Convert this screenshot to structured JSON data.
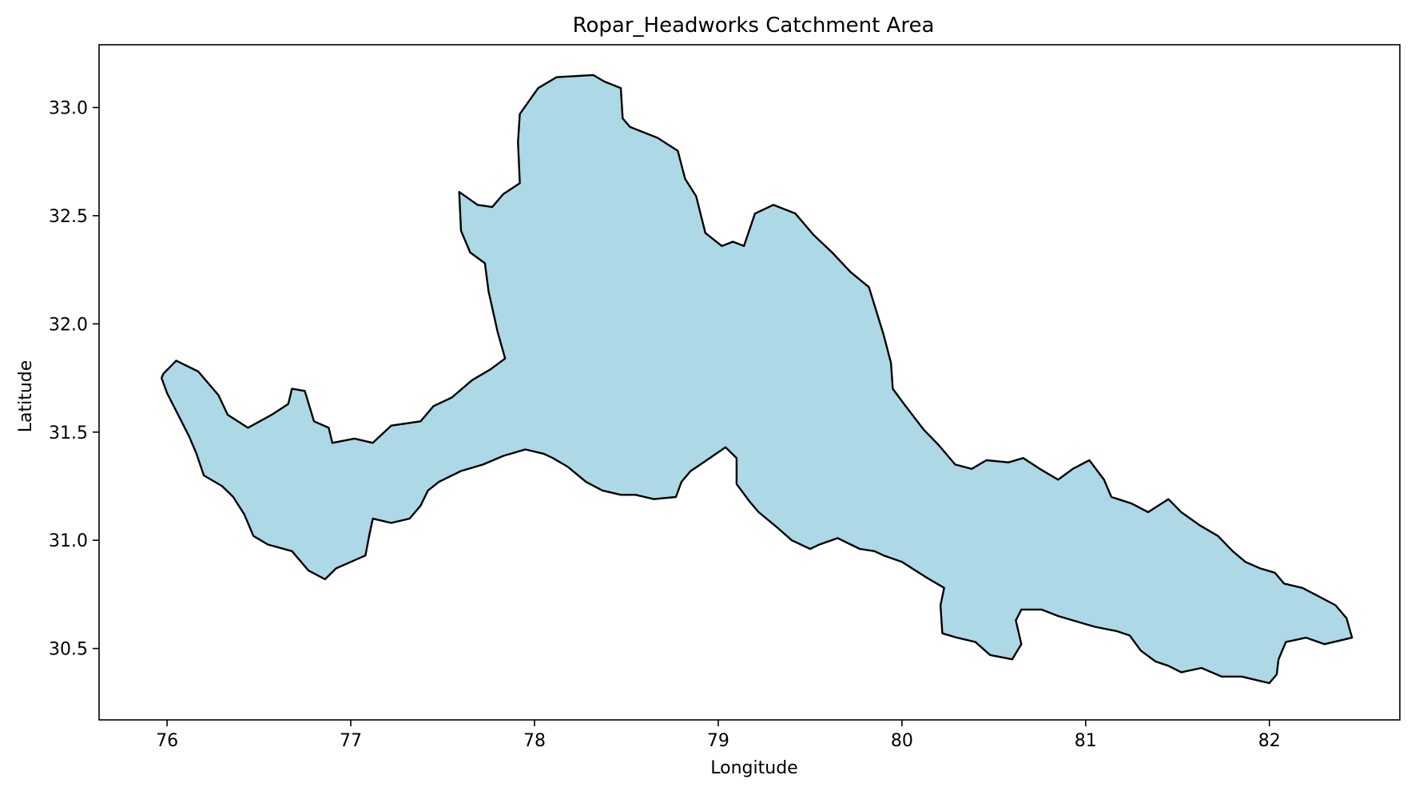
{
  "chart_data": {
    "type": "map",
    "title": "Ropar_Headworks Catchment Area",
    "xlabel": "Longitude",
    "ylabel": "Latitude",
    "xlim": [
      75.63,
      82.71
    ],
    "ylim": [
      30.17,
      33.29
    ],
    "xticks": [
      76,
      77,
      78,
      79,
      80,
      81,
      82
    ],
    "xtick_labels": [
      "76",
      "77",
      "78",
      "79",
      "80",
      "81",
      "82"
    ],
    "yticks": [
      30.5,
      31.0,
      31.5,
      32.0,
      32.5,
      33.0
    ],
    "ytick_labels": [
      "30.5",
      "31.0",
      "31.5",
      "32.0",
      "32.5",
      "33.0"
    ],
    "grid": false,
    "fill_color": "#add8e6",
    "edge_color": "#000000",
    "boundary": [
      [
        75.98,
        31.77
      ],
      [
        76.05,
        31.83
      ],
      [
        76.17,
        31.78
      ],
      [
        76.28,
        31.67
      ],
      [
        76.33,
        31.58
      ],
      [
        76.44,
        31.52
      ],
      [
        76.57,
        31.58
      ],
      [
        76.66,
        31.63
      ],
      [
        76.68,
        31.7
      ],
      [
        76.75,
        31.69
      ],
      [
        76.8,
        31.55
      ],
      [
        76.88,
        31.52
      ],
      [
        76.9,
        31.45
      ],
      [
        77.02,
        31.47
      ],
      [
        77.12,
        31.45
      ],
      [
        77.22,
        31.53
      ],
      [
        77.38,
        31.55
      ],
      [
        77.45,
        31.62
      ],
      [
        77.55,
        31.66
      ],
      [
        77.66,
        31.74
      ],
      [
        77.76,
        31.79
      ],
      [
        77.84,
        31.84
      ],
      [
        77.8,
        31.96
      ],
      [
        77.75,
        32.15
      ],
      [
        77.73,
        32.28
      ],
      [
        77.65,
        32.33
      ],
      [
        77.6,
        32.43
      ],
      [
        77.59,
        32.61
      ],
      [
        77.69,
        32.55
      ],
      [
        77.77,
        32.54
      ],
      [
        77.83,
        32.6
      ],
      [
        77.92,
        32.65
      ],
      [
        77.91,
        32.84
      ],
      [
        77.92,
        32.97
      ],
      [
        78.02,
        33.09
      ],
      [
        78.12,
        33.14
      ],
      [
        78.32,
        33.15
      ],
      [
        78.38,
        33.12
      ],
      [
        78.47,
        33.09
      ],
      [
        78.48,
        32.95
      ],
      [
        78.52,
        32.91
      ],
      [
        78.67,
        32.86
      ],
      [
        78.78,
        32.8
      ],
      [
        78.82,
        32.67
      ],
      [
        78.88,
        32.59
      ],
      [
        78.93,
        32.42
      ],
      [
        79.02,
        32.36
      ],
      [
        79.08,
        32.38
      ],
      [
        79.14,
        32.36
      ],
      [
        79.2,
        32.51
      ],
      [
        79.3,
        32.55
      ],
      [
        79.42,
        32.51
      ],
      [
        79.52,
        32.41
      ],
      [
        79.62,
        32.33
      ],
      [
        79.72,
        32.24
      ],
      [
        79.82,
        32.17
      ],
      [
        79.86,
        32.06
      ],
      [
        79.9,
        31.95
      ],
      [
        79.94,
        31.82
      ],
      [
        79.95,
        31.7
      ],
      [
        80.02,
        31.62
      ],
      [
        80.12,
        31.51
      ],
      [
        80.2,
        31.44
      ],
      [
        80.29,
        31.35
      ],
      [
        80.38,
        31.33
      ],
      [
        80.46,
        31.37
      ],
      [
        80.58,
        31.36
      ],
      [
        80.66,
        31.38
      ],
      [
        80.75,
        31.33
      ],
      [
        80.85,
        31.28
      ],
      [
        80.93,
        31.33
      ],
      [
        81.02,
        31.37
      ],
      [
        81.1,
        31.28
      ],
      [
        81.14,
        31.2
      ],
      [
        81.25,
        31.17
      ],
      [
        81.34,
        31.13
      ],
      [
        81.45,
        31.19
      ],
      [
        81.52,
        31.13
      ],
      [
        81.62,
        31.07
      ],
      [
        81.72,
        31.02
      ],
      [
        81.8,
        30.95
      ],
      [
        81.87,
        30.9
      ],
      [
        81.95,
        30.87
      ],
      [
        82.03,
        30.85
      ],
      [
        82.08,
        30.8
      ],
      [
        82.18,
        30.78
      ],
      [
        82.27,
        30.74
      ],
      [
        82.36,
        30.7
      ],
      [
        82.42,
        30.64
      ],
      [
        82.45,
        30.55
      ],
      [
        82.4,
        30.54
      ],
      [
        82.3,
        30.52
      ],
      [
        82.2,
        30.55
      ],
      [
        82.09,
        30.53
      ],
      [
        82.05,
        30.45
      ],
      [
        82.04,
        30.38
      ],
      [
        82.0,
        30.34
      ],
      [
        81.95,
        30.35
      ],
      [
        81.85,
        30.37
      ],
      [
        81.74,
        30.37
      ],
      [
        81.63,
        30.41
      ],
      [
        81.52,
        30.39
      ],
      [
        81.45,
        30.42
      ],
      [
        81.38,
        30.44
      ],
      [
        81.3,
        30.49
      ],
      [
        81.24,
        30.56
      ],
      [
        81.17,
        30.58
      ],
      [
        81.05,
        30.6
      ],
      [
        80.97,
        30.62
      ],
      [
        80.85,
        30.65
      ],
      [
        80.76,
        30.68
      ],
      [
        80.65,
        30.68
      ],
      [
        80.62,
        30.63
      ],
      [
        80.65,
        30.52
      ],
      [
        80.6,
        30.45
      ],
      [
        80.48,
        30.47
      ],
      [
        80.4,
        30.53
      ],
      [
        80.3,
        30.55
      ],
      [
        80.22,
        30.57
      ],
      [
        80.21,
        30.7
      ],
      [
        80.23,
        30.78
      ],
      [
        80.13,
        30.83
      ],
      [
        80.0,
        30.9
      ],
      [
        79.9,
        30.93
      ],
      [
        79.85,
        30.95
      ],
      [
        79.77,
        30.96
      ],
      [
        79.65,
        31.01
      ],
      [
        79.55,
        30.98
      ],
      [
        79.5,
        30.96
      ],
      [
        79.4,
        31.0
      ],
      [
        79.32,
        31.06
      ],
      [
        79.22,
        31.13
      ],
      [
        79.17,
        31.18
      ],
      [
        79.1,
        31.26
      ],
      [
        79.1,
        31.38
      ],
      [
        79.04,
        31.43
      ],
      [
        78.92,
        31.36
      ],
      [
        78.85,
        31.32
      ],
      [
        78.8,
        31.27
      ],
      [
        78.77,
        31.2
      ],
      [
        78.65,
        31.19
      ],
      [
        78.55,
        31.21
      ],
      [
        78.47,
        31.21
      ],
      [
        78.37,
        31.23
      ],
      [
        78.28,
        31.27
      ],
      [
        78.18,
        31.34
      ],
      [
        78.1,
        31.38
      ],
      [
        78.05,
        31.4
      ],
      [
        77.95,
        31.42
      ],
      [
        77.83,
        31.39
      ],
      [
        77.72,
        31.35
      ],
      [
        77.6,
        31.32
      ],
      [
        77.48,
        31.27
      ],
      [
        77.42,
        31.23
      ],
      [
        77.38,
        31.16
      ],
      [
        77.32,
        31.1
      ],
      [
        77.22,
        31.08
      ],
      [
        77.12,
        31.1
      ],
      [
        77.1,
        31.02
      ],
      [
        77.08,
        30.93
      ],
      [
        77.0,
        30.9
      ],
      [
        76.92,
        30.87
      ],
      [
        76.86,
        30.82
      ],
      [
        76.77,
        30.86
      ],
      [
        76.68,
        30.95
      ],
      [
        76.55,
        30.98
      ],
      [
        76.47,
        31.02
      ],
      [
        76.42,
        31.12
      ],
      [
        76.36,
        31.2
      ],
      [
        76.3,
        31.25
      ],
      [
        76.2,
        31.3
      ],
      [
        76.16,
        31.4
      ],
      [
        76.12,
        31.48
      ],
      [
        76.06,
        31.58
      ],
      [
        76.0,
        31.68
      ],
      [
        75.97,
        31.75
      ]
    ]
  }
}
